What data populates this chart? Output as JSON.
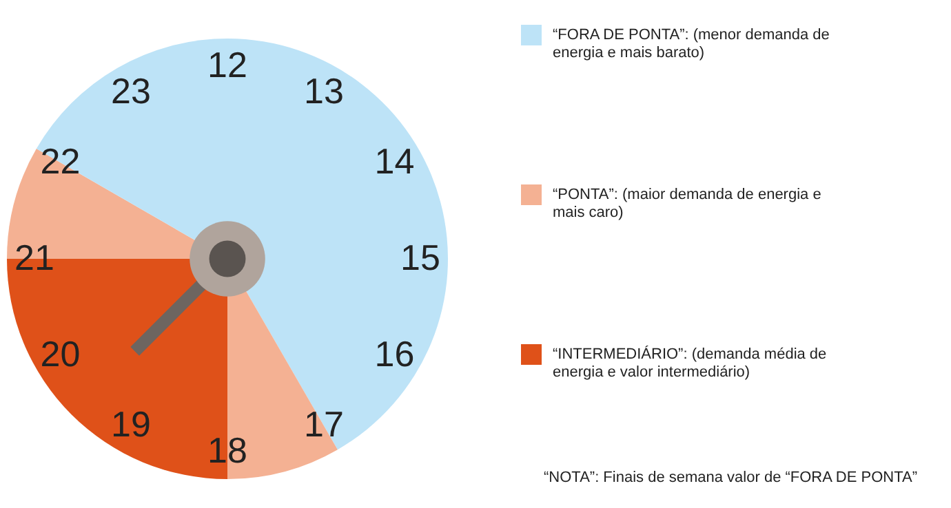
{
  "chart_data": {
    "type": "pie",
    "categories": [
      "“FORA DE PONTA”: (menor demanda de energia e mais barato)",
      "“PONTA”: (maior demanda de energia e mais caro)",
      "“INTERMEDIÁRIO”: (demanda média de energia e valor intermediário)",
      null,
      null
    ],
    "values": [
      41.67,
      8.33,
      25,
      8.33,
      16.67
    ],
    "colors": [
      "#bde3f7",
      "#f4b193",
      "#df5119",
      "#f4b193",
      "#bde3f7"
    ],
    "needle": "“INTERMEDIÁRIO”: (demanda média de energia e valor intermediário)",
    "legend": "right",
    "annotations": [
      "12",
      "13",
      "14",
      "15",
      "16",
      "17",
      "18",
      "19",
      "20",
      "21",
      "22",
      "23",
      "“NOTA”: Finais de semana valor de “FORA DE PONTA”"
    ]
  }
}
